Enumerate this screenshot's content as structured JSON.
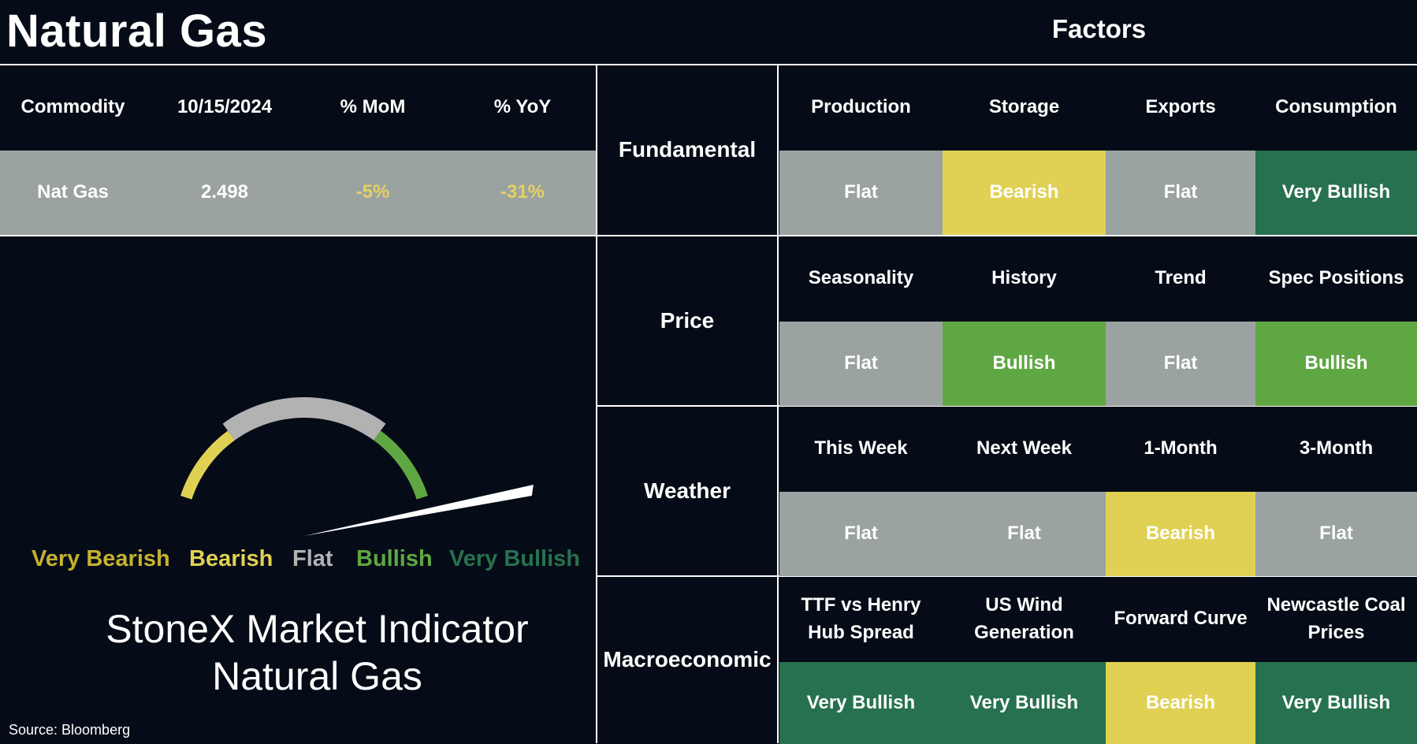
{
  "header": {
    "title": "Natural Gas",
    "factors_title": "Factors"
  },
  "summary": {
    "columns": [
      "Commodity",
      "10/15/2024",
      "% MoM",
      "% YoY"
    ],
    "row": [
      "Nat Gas",
      "2.498",
      "-5%",
      "-31%"
    ]
  },
  "gauge": {
    "labels": [
      "Very Bearish",
      "Bearish",
      "Flat",
      "Bullish",
      "Very Bullish"
    ],
    "colors": {
      "very_bearish": "#c5b22f",
      "bearish": "#e0d155",
      "flat": "#b2b2b2",
      "bullish": "#5fa743",
      "very_bullish": "#27714f",
      "needle": "#ffffff"
    },
    "reading": "Very Bullish",
    "reading_value": 0.93
  },
  "indicator": {
    "line1": "StoneX Market Indicator",
    "line2": "Natural Gas"
  },
  "source": "Source: Bloomberg",
  "factors": [
    {
      "category": "Fundamental",
      "items": [
        {
          "name": "Production",
          "signal": "Flat"
        },
        {
          "name": "Storage",
          "signal": "Bearish"
        },
        {
          "name": "Exports",
          "signal": "Flat"
        },
        {
          "name": "Consumption",
          "signal": "Very Bullish"
        }
      ]
    },
    {
      "category": "Price",
      "items": [
        {
          "name": "Seasonality",
          "signal": "Flat"
        },
        {
          "name": "History",
          "signal": "Bullish"
        },
        {
          "name": "Trend",
          "signal": "Flat"
        },
        {
          "name": "Spec Positions",
          "signal": "Bullish"
        }
      ]
    },
    {
      "category": "Weather",
      "items": [
        {
          "name": "This Week",
          "signal": "Flat"
        },
        {
          "name": "Next Week",
          "signal": "Flat"
        },
        {
          "name": "1-Month",
          "signal": "Bearish"
        },
        {
          "name": "3-Month",
          "signal": "Flat"
        }
      ]
    },
    {
      "category": "Macroeconomic",
      "items": [
        {
          "name": "TTF vs Henry Hub Spread",
          "signal": "Very Bullish"
        },
        {
          "name": "US Wind Generation",
          "signal": "Very Bullish"
        },
        {
          "name": "Forward Curve",
          "signal": "Bearish"
        },
        {
          "name": "Newcastle Coal Prices",
          "signal": "Very Bullish"
        }
      ]
    }
  ],
  "chart_data": {
    "type": "gauge",
    "categories": [
      "Very Bearish",
      "Bearish",
      "Flat",
      "Bullish",
      "Very Bullish"
    ],
    "reading": "Very Bullish",
    "value": 0.93
  }
}
